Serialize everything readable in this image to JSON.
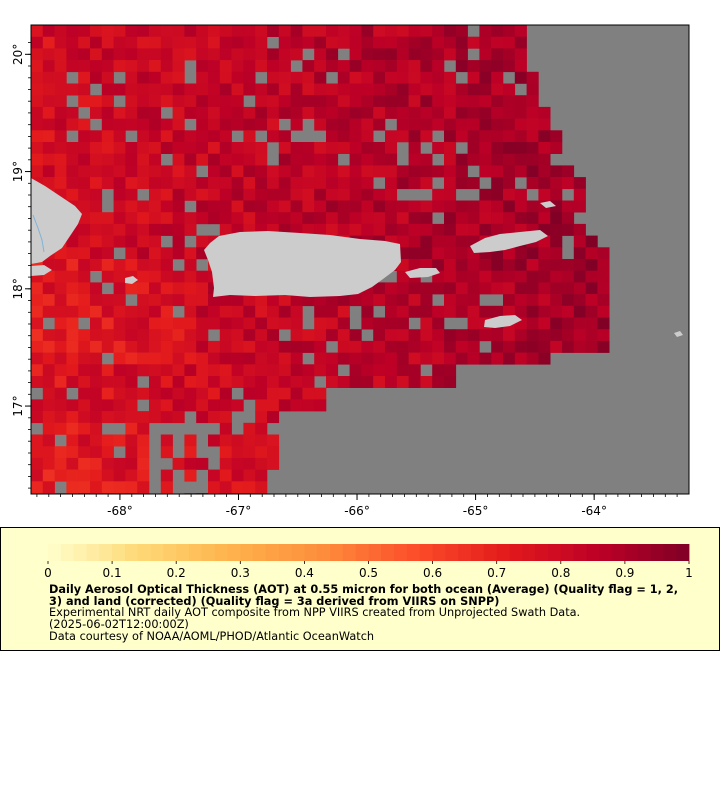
{
  "map": {
    "lon_range": [
      -68.75,
      -63.2
    ],
    "lat_range": [
      16.25,
      20.25
    ],
    "x_ticks": [
      {
        "value": -68,
        "label": "-68°"
      },
      {
        "value": -67,
        "label": "-67°"
      },
      {
        "value": -66,
        "label": "-66°"
      },
      {
        "value": -65,
        "label": "-65°"
      },
      {
        "value": -64,
        "label": "-64°"
      }
    ],
    "y_ticks": [
      {
        "value": 17,
        "label": "17°"
      },
      {
        "value": 18,
        "label": "18°"
      },
      {
        "value": 19,
        "label": "19°"
      },
      {
        "value": 20,
        "label": "20°"
      }
    ],
    "colors": {
      "no_data": "#808080",
      "land": "#cccccc",
      "water_line": "#7fb2d8",
      "frame": "#000000"
    }
  },
  "legend": {
    "title": "Daily Aerosol Optical Thickness (AOT) at 0.55 micron for both ocean (Average) (Quality flag = 1, 2, 3) and land (corrected) (Quality flag = 3a derived from VIIRS on SNPP)",
    "line1": "Experimental NRT daily AOT composite from NPP VIIRS created from Unprojected Swath Data.",
    "line2": "(2025-06-02T12:00:00Z)",
    "line3": "Data courtesy of NOAA/AOML/PHOD/Atlantic OceanWatch",
    "range": [
      0,
      1
    ],
    "tick_labels": [
      "0",
      "0.1",
      "0.2",
      "0.3",
      "0.4",
      "0.5",
      "0.6",
      "0.7",
      "0.8",
      "0.9",
      "1"
    ],
    "palette": [
      "#ffffcc",
      "#fed976",
      "#feb24c",
      "#fd8d3c",
      "#fc4e2a",
      "#e31a1c",
      "#bd0026",
      "#800026"
    ]
  }
}
